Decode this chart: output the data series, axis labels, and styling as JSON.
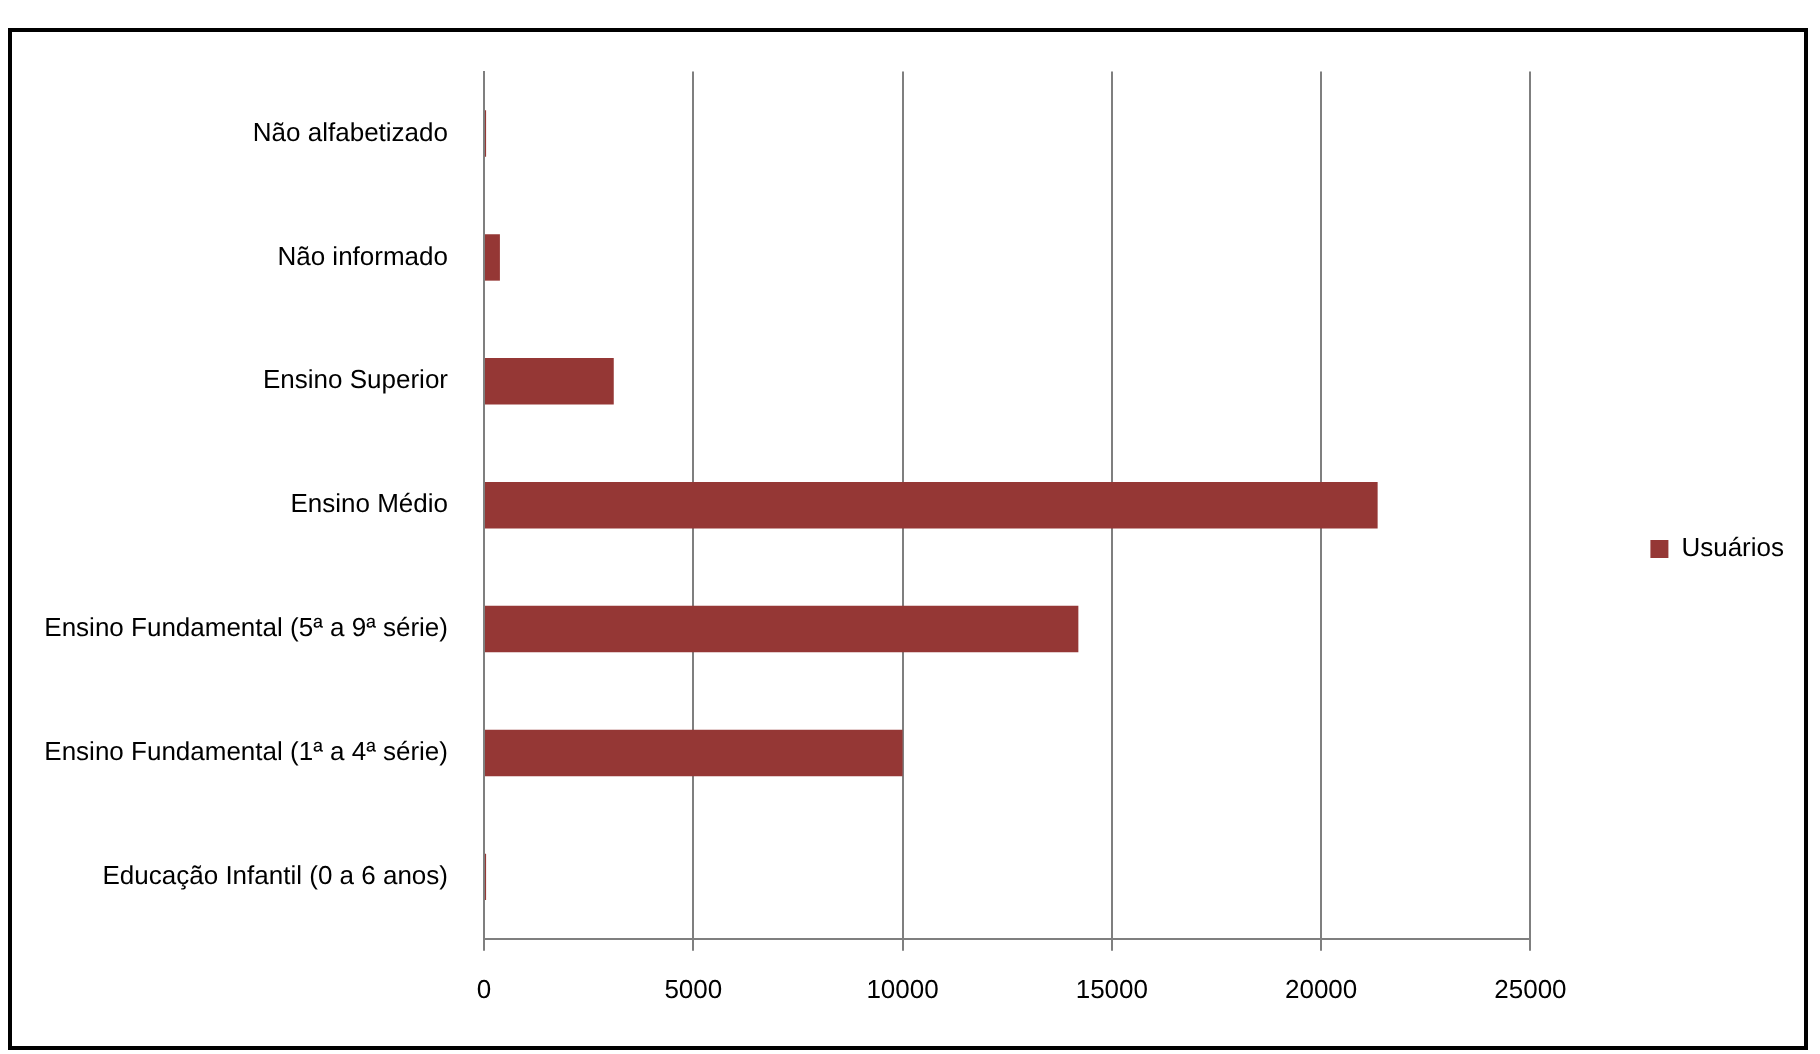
{
  "chart_data": {
    "type": "bar",
    "orientation": "horizontal",
    "categories": [
      "Não alfabetizado",
      "Não informado",
      "Ensino Superior",
      "Ensino Médio",
      "Ensino Fundamental (5ª a 9ª série)",
      "Ensino Fundamental (1ª a 4ª série)",
      "Educação Infantil (0 a 6 anos)"
    ],
    "series": [
      {
        "name": "Usuários",
        "color": "#953735",
        "values": [
          50,
          380,
          3100,
          21350,
          14200,
          10000,
          50
        ]
      }
    ],
    "xlim": [
      0,
      25000
    ],
    "xticks": [
      0,
      5000,
      10000,
      15000,
      20000,
      25000
    ],
    "grid": "x",
    "legend": "right"
  }
}
